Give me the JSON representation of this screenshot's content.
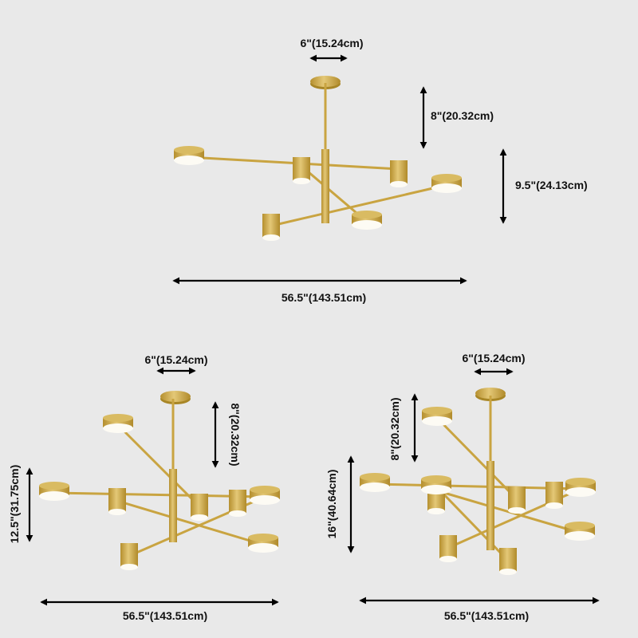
{
  "product_views": [
    {
      "name": "top-view",
      "dimensions": {
        "canopy_width": "6\"(15.24cm)",
        "rod_length": "8\"(20.32cm)",
        "fixture_height": "9.5\"(24.13cm)",
        "overall_width": "56.5\"(143.51cm)"
      }
    },
    {
      "name": "bottom-left-view",
      "dimensions": {
        "canopy_width": "6\"(15.24cm)",
        "rod_length": "8\"(20.32cm)",
        "fixture_height": "12.5\"(31.75cm)",
        "overall_width": "56.5\"(143.51cm)"
      }
    },
    {
      "name": "bottom-right-view",
      "dimensions": {
        "canopy_width": "6\"(15.24cm)",
        "rod_length": "8\"(20.32cm)",
        "fixture_height": "16\"(40.64cm)",
        "overall_width": "56.5\"(143.51cm)"
      }
    }
  ],
  "colors": {
    "background": "#e9e9e9",
    "brass": "#c9a441",
    "light": "#fdfbf4",
    "arrow": "#000000"
  }
}
